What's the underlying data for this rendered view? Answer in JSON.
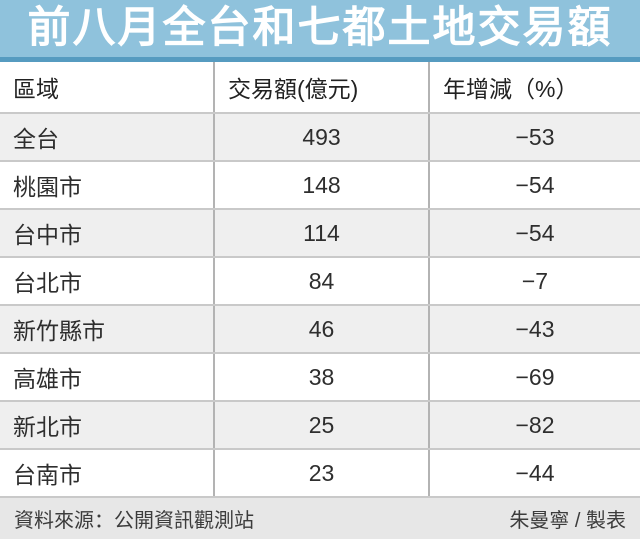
{
  "title": "前八月全台和七都土地交易額",
  "table": {
    "columns": {
      "region": "區域",
      "amount": "交易額(億元)",
      "yoy": "年增減（%）"
    },
    "rows": [
      {
        "region": "全台",
        "amount": "493",
        "yoy": "−53"
      },
      {
        "region": "桃園市",
        "amount": "148",
        "yoy": "−54"
      },
      {
        "region": "台中市",
        "amount": "114",
        "yoy": "−54"
      },
      {
        "region": "台北市",
        "amount": "84",
        "yoy": "−7"
      },
      {
        "region": "新竹縣市",
        "amount": "46",
        "yoy": "−43"
      },
      {
        "region": "高雄市",
        "amount": "38",
        "yoy": "−69"
      },
      {
        "region": "新北市",
        "amount": "25",
        "yoy": "−82"
      },
      {
        "region": "台南市",
        "amount": "23",
        "yoy": "−44"
      }
    ]
  },
  "footer": {
    "source": "資料來源：公開資訊觀測站",
    "credit": "朱曼寧 / 製表"
  },
  "colors": {
    "banner_bg": "#8fc2dc",
    "banner_stripe": "#569bc0",
    "alt_row_bg": "#efefef",
    "footer_bg": "#e7e7e7",
    "border_horizontal": "#c9c9c9",
    "border_vertical": "#b3b3b3",
    "title_text": "#ffffff",
    "body_text": "#2e2e2e"
  },
  "chart_data": {
    "type": "table",
    "title": "前八月全台和七都土地交易額",
    "columns": [
      "區域",
      "交易額(億元)",
      "年增減（%）"
    ],
    "rows": [
      [
        "全台",
        493,
        -53
      ],
      [
        "桃園市",
        148,
        -54
      ],
      [
        "台中市",
        114,
        -54
      ],
      [
        "台北市",
        84,
        -7
      ],
      [
        "新竹縣市",
        46,
        -43
      ],
      [
        "高雄市",
        38,
        -69
      ],
      [
        "新北市",
        25,
        -82
      ],
      [
        "台南市",
        23,
        -44
      ]
    ],
    "units": {
      "amount": "億元",
      "yoy": "%"
    },
    "source": "資料來源：公開資訊觀測站",
    "credit": "朱曼寧 / 製表"
  }
}
